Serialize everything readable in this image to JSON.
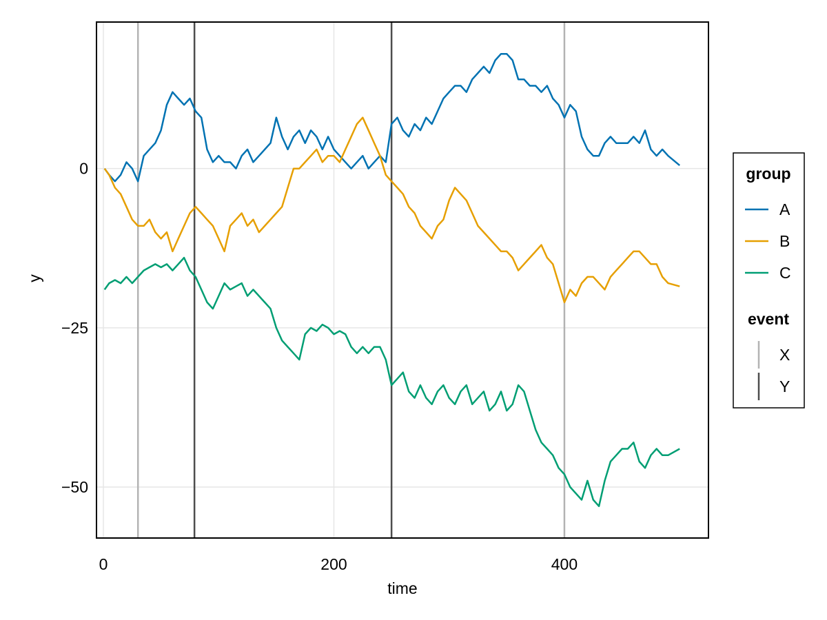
{
  "chart_data": {
    "type": "line",
    "title": "",
    "xlabel": "time",
    "ylabel": "y",
    "xlim": [
      -6,
      525
    ],
    "ylim": [
      -58,
      23
    ],
    "x_ticks": [
      0,
      200,
      400
    ],
    "y_ticks": [
      0,
      -25,
      -50
    ],
    "x_tick_labels": [
      "0",
      "200",
      "400"
    ],
    "y_tick_labels": [
      "0",
      "−25",
      "−50"
    ],
    "grid": true,
    "legend_position": "right",
    "series": [
      {
        "name": "A",
        "color": "#0072B2",
        "x": [
          1,
          5,
          10,
          15,
          20,
          25,
          30,
          35,
          40,
          45,
          50,
          55,
          60,
          65,
          70,
          75,
          80,
          85,
          90,
          95,
          100,
          105,
          110,
          115,
          120,
          125,
          130,
          135,
          140,
          145,
          150,
          155,
          160,
          165,
          170,
          175,
          180,
          185,
          190,
          195,
          200,
          205,
          210,
          215,
          220,
          225,
          230,
          235,
          240,
          245,
          250,
          255,
          260,
          265,
          270,
          275,
          280,
          285,
          290,
          295,
          300,
          305,
          310,
          315,
          320,
          325,
          330,
          335,
          340,
          345,
          350,
          355,
          360,
          365,
          370,
          375,
          380,
          385,
          390,
          395,
          400,
          405,
          410,
          415,
          420,
          425,
          430,
          435,
          440,
          445,
          450,
          455,
          460,
          465,
          470,
          475,
          480,
          485,
          490,
          500
        ],
        "values": [
          0,
          -1,
          -2,
          -1,
          1,
          0,
          -2,
          2,
          3,
          4,
          6,
          10,
          12,
          11,
          10,
          11,
          9,
          8,
          3,
          1,
          2,
          1,
          1,
          0,
          2,
          3,
          1,
          2,
          3,
          4,
          8,
          5,
          3,
          5,
          6,
          4,
          6,
          5,
          3,
          5,
          3,
          2,
          1,
          0,
          1,
          2,
          0,
          1,
          2,
          1,
          7,
          8,
          6,
          5,
          7,
          6,
          8,
          7,
          9,
          11,
          12,
          13,
          13,
          12,
          14,
          15,
          16,
          15,
          17,
          18,
          18,
          17,
          14,
          14,
          13,
          13,
          12,
          13,
          11,
          10,
          8,
          10,
          9,
          5,
          3,
          2,
          2,
          4,
          5,
          4,
          4,
          4,
          5,
          4,
          6,
          3,
          2,
          3,
          2,
          0.5
        ]
      },
      {
        "name": "B",
        "color": "#E69F00",
        "x": [
          1,
          5,
          10,
          15,
          20,
          25,
          30,
          35,
          40,
          45,
          50,
          55,
          60,
          65,
          70,
          75,
          80,
          85,
          90,
          95,
          100,
          105,
          110,
          115,
          120,
          125,
          130,
          135,
          140,
          145,
          150,
          155,
          160,
          165,
          170,
          175,
          180,
          185,
          190,
          195,
          200,
          205,
          210,
          215,
          220,
          225,
          230,
          235,
          240,
          245,
          250,
          255,
          260,
          265,
          270,
          275,
          280,
          285,
          290,
          295,
          300,
          305,
          310,
          315,
          320,
          325,
          330,
          335,
          340,
          345,
          350,
          355,
          360,
          365,
          370,
          375,
          380,
          385,
          390,
          395,
          400,
          405,
          410,
          415,
          420,
          425,
          430,
          435,
          440,
          445,
          450,
          455,
          460,
          465,
          470,
          475,
          480,
          485,
          490,
          500
        ],
        "values": [
          0,
          -1,
          -3,
          -4,
          -6,
          -8,
          -9,
          -9,
          -8,
          -10,
          -11,
          -10,
          -13,
          -11,
          -9,
          -7,
          -6,
          -7,
          -8,
          -9,
          -11,
          -13,
          -9,
          -8,
          -7,
          -9,
          -8,
          -10,
          -9,
          -8,
          -7,
          -6,
          -3,
          0,
          0,
          1,
          2,
          3,
          1,
          2,
          2,
          1,
          3,
          5,
          7,
          8,
          6,
          4,
          2,
          -1,
          -2,
          -3,
          -4,
          -6,
          -7,
          -9,
          -10,
          -11,
          -9,
          -8,
          -5,
          -3,
          -4,
          -5,
          -7,
          -9,
          -10,
          -11,
          -12,
          -13,
          -13,
          -14,
          -16,
          -15,
          -14,
          -13,
          -12,
          -14,
          -15,
          -18,
          -21,
          -19,
          -20,
          -18,
          -17,
          -17,
          -18,
          -19,
          -17,
          -16,
          -15,
          -14,
          -13,
          -13,
          -14,
          -15,
          -15,
          -17,
          -18,
          -18.5
        ]
      },
      {
        "name": "C",
        "color": "#009E73",
        "x": [
          1,
          5,
          10,
          15,
          20,
          25,
          30,
          35,
          40,
          45,
          50,
          55,
          60,
          65,
          70,
          75,
          80,
          85,
          90,
          95,
          100,
          105,
          110,
          115,
          120,
          125,
          130,
          135,
          140,
          145,
          150,
          155,
          160,
          165,
          170,
          175,
          180,
          185,
          190,
          195,
          200,
          205,
          210,
          215,
          220,
          225,
          230,
          235,
          240,
          245,
          250,
          255,
          260,
          265,
          270,
          275,
          280,
          285,
          290,
          295,
          300,
          305,
          310,
          315,
          320,
          325,
          330,
          335,
          340,
          345,
          350,
          355,
          360,
          365,
          370,
          375,
          380,
          385,
          390,
          395,
          400,
          405,
          410,
          415,
          420,
          425,
          430,
          435,
          440,
          445,
          450,
          455,
          460,
          465,
          470,
          475,
          480,
          485,
          490,
          500
        ],
        "values": [
          -19,
          -18,
          -17.5,
          -18,
          -17,
          -18,
          -17,
          -16,
          -15.5,
          -15,
          -15.5,
          -15,
          -16,
          -15,
          -14,
          -16,
          -17,
          -19,
          -21,
          -22,
          -20,
          -18,
          -19,
          -18.5,
          -18,
          -20,
          -19,
          -20,
          -21,
          -22,
          -25,
          -27,
          -28,
          -29,
          -30,
          -26,
          -25,
          -25.5,
          -24.5,
          -25,
          -26,
          -25.5,
          -26,
          -28,
          -29,
          -28,
          -29,
          -28,
          -28,
          -30,
          -34,
          -33,
          -32,
          -35,
          -36,
          -34,
          -36,
          -37,
          -35,
          -34,
          -36,
          -37,
          -35,
          -34,
          -37,
          -36,
          -35,
          -38,
          -37,
          -35,
          -38,
          -37,
          -34,
          -35,
          -38,
          -41,
          -43,
          -44,
          -45,
          -47,
          -48,
          -50,
          -51,
          -52,
          -49,
          -52,
          -53,
          -49,
          -46,
          -45,
          -44,
          -44,
          -43,
          -46,
          -47,
          -45,
          -44,
          -45,
          -45,
          -44
        ]
      }
    ],
    "events": [
      {
        "name": "X",
        "color": "#b3b3b3",
        "x": [
          30,
          400
        ]
      },
      {
        "name": "Y",
        "color": "#4d4d4d",
        "x": [
          79,
          250
        ]
      }
    ],
    "legend": {
      "group_title": "group",
      "event_title": "event"
    }
  }
}
